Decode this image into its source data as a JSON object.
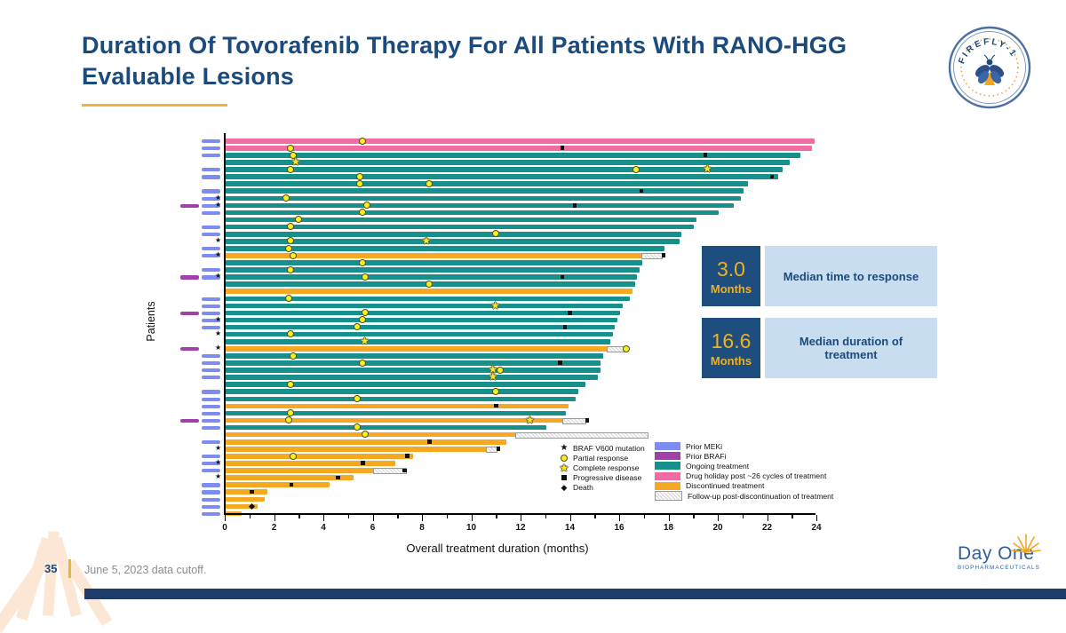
{
  "slide": {
    "title": "Duration Of Tovorafenib Therapy For All Patients With RANO-HGG Evaluable Lesions",
    "page_number": "35",
    "footnote": "June 5, 2023 data cutoff."
  },
  "logos": {
    "firefly_text": "FIREFLY-1",
    "dayone_name": "Day One",
    "dayone_sub": "BIOPHARMACEUTICALS"
  },
  "stats": [
    {
      "value": "3.0",
      "unit": "Months",
      "label": "Median time to response"
    },
    {
      "value": "16.6",
      "unit": "Months",
      "label": "Median duration of treatment"
    }
  ],
  "chart_data": {
    "type": "bar",
    "subtype": "swimmer-plot",
    "xlabel": "Overall treatment duration (months)",
    "ylabel": "Patients",
    "xlim": [
      0,
      24
    ],
    "xticks": [
      0,
      2,
      4,
      6,
      8,
      10,
      12,
      14,
      16,
      18,
      20,
      22,
      24
    ],
    "colors": {
      "teal": "#178F8B",
      "pink": "#F06CA2",
      "orange": "#F7A823",
      "meki": "#7C8CF0",
      "brafi": "#A040A8",
      "navy": "#1B4A7C",
      "gold": "#EFB021",
      "lightblue": "#C9DDF1"
    },
    "legend_markers": [
      {
        "sym": "v600",
        "label": "BRAF V600 mutation"
      },
      {
        "sym": "pr",
        "label": "Partial response"
      },
      {
        "sym": "cr",
        "label": "Complete response"
      },
      {
        "sym": "pd",
        "label": "Progressive disease"
      },
      {
        "sym": "death",
        "label": "Death"
      }
    ],
    "legend_colors": [
      {
        "key": "meki",
        "label": "Prior MEKi"
      },
      {
        "key": "brafi",
        "label": "Prior BRAFi"
      },
      {
        "key": "teal",
        "label": "Ongoing treatment"
      },
      {
        "key": "pink",
        "label": "Drug holiday post ~26 cycles of treatment"
      },
      {
        "key": "orange",
        "label": "Discontinued treatment"
      },
      {
        "key": "hatch",
        "label": "Follow-up post-discontinuation of treatment"
      }
    ],
    "rows": [
      {
        "bar": "pink",
        "len": 23.9,
        "hatch_to": 0,
        "markers": [
          [
            "pr",
            5.6
          ]
        ],
        "meki": 1,
        "brafi": 0,
        "v600": 0
      },
      {
        "bar": "pink",
        "len": 23.8,
        "hatch_to": 0,
        "markers": [
          [
            "pr",
            2.7
          ],
          [
            "pd",
            13.7
          ]
        ],
        "meki": 1,
        "brafi": 0,
        "v600": 0
      },
      {
        "bar": "teal",
        "len": 23.3,
        "hatch_to": 0,
        "markers": [
          [
            "pr",
            2.8
          ],
          [
            "pd",
            19.5
          ]
        ],
        "meki": 1,
        "brafi": 0,
        "v600": 0
      },
      {
        "bar": "teal",
        "len": 22.9,
        "hatch_to": 0,
        "markers": [
          [
            "cr",
            2.9
          ]
        ],
        "meki": 0,
        "brafi": 0,
        "v600": 0
      },
      {
        "bar": "teal",
        "len": 22.6,
        "hatch_to": 0,
        "markers": [
          [
            "pr",
            2.7
          ],
          [
            "pr",
            16.7
          ],
          [
            "cr",
            19.6
          ]
        ],
        "meki": 1,
        "brafi": 0,
        "v600": 0
      },
      {
        "bar": "teal",
        "len": 22.4,
        "hatch_to": 0,
        "markers": [
          [
            "pr",
            5.5
          ],
          [
            "pd",
            22.2
          ]
        ],
        "meki": 1,
        "brafi": 0,
        "v600": 0
      },
      {
        "bar": "teal",
        "len": 21.2,
        "hatch_to": 0,
        "markers": [
          [
            "pr",
            5.5
          ],
          [
            "pr",
            8.3
          ]
        ],
        "meki": 0,
        "brafi": 0,
        "v600": 0
      },
      {
        "bar": "teal",
        "len": 21.0,
        "hatch_to": 0,
        "markers": [
          [
            "pd",
            16.9
          ]
        ],
        "meki": 1,
        "brafi": 0,
        "v600": 0
      },
      {
        "bar": "teal",
        "len": 20.9,
        "hatch_to": 0,
        "markers": [
          [
            "pr",
            2.5
          ]
        ],
        "meki": 1,
        "brafi": 0,
        "v600": 1
      },
      {
        "bar": "teal",
        "len": 20.6,
        "hatch_to": 0,
        "markers": [
          [
            "pr",
            5.8
          ],
          [
            "pd",
            14.2
          ]
        ],
        "meki": 1,
        "brafi": 1,
        "v600": 1
      },
      {
        "bar": "teal",
        "len": 20.0,
        "hatch_to": 0,
        "markers": [
          [
            "pr",
            5.6
          ]
        ],
        "meki": 1,
        "brafi": 0,
        "v600": 0
      },
      {
        "bar": "teal",
        "len": 19.1,
        "hatch_to": 0,
        "markers": [
          [
            "pr",
            3.0
          ]
        ],
        "meki": 0,
        "brafi": 0,
        "v600": 0
      },
      {
        "bar": "teal",
        "len": 19.0,
        "hatch_to": 0,
        "markers": [
          [
            "pr",
            2.7
          ]
        ],
        "meki": 1,
        "brafi": 0,
        "v600": 0
      },
      {
        "bar": "teal",
        "len": 18.5,
        "hatch_to": 0,
        "markers": [
          [
            "pr",
            11.0
          ]
        ],
        "meki": 1,
        "brafi": 0,
        "v600": 0
      },
      {
        "bar": "teal",
        "len": 18.4,
        "hatch_to": 0,
        "markers": [
          [
            "pr",
            2.7
          ],
          [
            "cr",
            8.2
          ]
        ],
        "meki": 0,
        "brafi": 0,
        "v600": 1
      },
      {
        "bar": "teal",
        "len": 17.8,
        "hatch_to": 0,
        "markers": [
          [
            "pr",
            2.6
          ]
        ],
        "meki": 1,
        "brafi": 0,
        "v600": 0
      },
      {
        "bar": "orange",
        "len": 16.9,
        "hatch_to": 17.7,
        "markers": [
          [
            "pr",
            2.8
          ],
          [
            "pd",
            17.8
          ]
        ],
        "meki": 1,
        "brafi": 0,
        "v600": 1
      },
      {
        "bar": "teal",
        "len": 16.9,
        "hatch_to": 0,
        "markers": [
          [
            "pr",
            5.6
          ]
        ],
        "meki": 0,
        "brafi": 0,
        "v600": 0
      },
      {
        "bar": "teal",
        "len": 16.8,
        "hatch_to": 0,
        "markers": [
          [
            "pr",
            2.7
          ]
        ],
        "meki": 1,
        "brafi": 0,
        "v600": 0
      },
      {
        "bar": "teal",
        "len": 16.7,
        "hatch_to": 0,
        "markers": [
          [
            "pr",
            5.7
          ],
          [
            "pd",
            13.7
          ]
        ],
        "meki": 1,
        "brafi": 1,
        "v600": 1
      },
      {
        "bar": "teal",
        "len": 16.6,
        "hatch_to": 0,
        "markers": [
          [
            "pr",
            8.3
          ]
        ],
        "meki": 0,
        "brafi": 0,
        "v600": 0
      },
      {
        "bar": "orange",
        "len": 16.5,
        "hatch_to": 0,
        "markers": [],
        "meki": 0,
        "brafi": 0,
        "v600": 0
      },
      {
        "bar": "teal",
        "len": 16.4,
        "hatch_to": 0,
        "markers": [
          [
            "pr",
            2.6
          ]
        ],
        "meki": 1,
        "brafi": 0,
        "v600": 0
      },
      {
        "bar": "teal",
        "len": 16.1,
        "hatch_to": 0,
        "markers": [
          [
            "cr",
            11.0
          ]
        ],
        "meki": 1,
        "brafi": 0,
        "v600": 0
      },
      {
        "bar": "teal",
        "len": 16.0,
        "hatch_to": 0,
        "markers": [
          [
            "pr",
            5.7
          ],
          [
            "pd",
            14.0
          ]
        ],
        "meki": 1,
        "brafi": 1,
        "v600": 0
      },
      {
        "bar": "teal",
        "len": 15.9,
        "hatch_to": 0,
        "markers": [
          [
            "pr",
            5.6
          ]
        ],
        "meki": 1,
        "brafi": 0,
        "v600": 1
      },
      {
        "bar": "teal",
        "len": 15.8,
        "hatch_to": 0,
        "markers": [
          [
            "pr",
            5.4
          ],
          [
            "pd",
            13.8
          ]
        ],
        "meki": 1,
        "brafi": 0,
        "v600": 0
      },
      {
        "bar": "teal",
        "len": 15.7,
        "hatch_to": 0,
        "markers": [
          [
            "pr",
            2.7
          ]
        ],
        "meki": 0,
        "brafi": 0,
        "v600": 1
      },
      {
        "bar": "teal",
        "len": 15.6,
        "hatch_to": 0,
        "markers": [
          [
            "cr",
            5.7
          ]
        ],
        "meki": 0,
        "brafi": 0,
        "v600": 0
      },
      {
        "bar": "orange",
        "len": 15.5,
        "hatch_to": 16.2,
        "markers": [
          [
            "pr",
            16.3
          ]
        ],
        "meki": 0,
        "brafi": 1,
        "v600": 1
      },
      {
        "bar": "teal",
        "len": 15.3,
        "hatch_to": 0,
        "markers": [
          [
            "pr",
            2.8
          ]
        ],
        "meki": 1,
        "brafi": 0,
        "v600": 0
      },
      {
        "bar": "teal",
        "len": 15.2,
        "hatch_to": 0,
        "markers": [
          [
            "pr",
            5.6
          ],
          [
            "pd",
            13.6
          ]
        ],
        "meki": 1,
        "brafi": 0,
        "v600": 0
      },
      {
        "bar": "teal",
        "len": 15.2,
        "hatch_to": 0,
        "markers": [
          [
            "cr",
            10.9
          ],
          [
            "pr",
            11.2
          ]
        ],
        "meki": 1,
        "brafi": 0,
        "v600": 0
      },
      {
        "bar": "teal",
        "len": 15.1,
        "hatch_to": 0,
        "markers": [
          [
            "cr",
            10.9
          ]
        ],
        "meki": 1,
        "brafi": 0,
        "v600": 0
      },
      {
        "bar": "teal",
        "len": 14.6,
        "hatch_to": 0,
        "markers": [
          [
            "pr",
            2.7
          ]
        ],
        "meki": 0,
        "brafi": 0,
        "v600": 0
      },
      {
        "bar": "teal",
        "len": 14.3,
        "hatch_to": 0,
        "markers": [
          [
            "pr",
            11.0
          ]
        ],
        "meki": 1,
        "brafi": 0,
        "v600": 0
      },
      {
        "bar": "teal",
        "len": 14.2,
        "hatch_to": 0,
        "markers": [
          [
            "pr",
            5.4
          ]
        ],
        "meki": 1,
        "brafi": 0,
        "v600": 0
      },
      {
        "bar": "orange",
        "len": 13.9,
        "hatch_to": 0,
        "markers": [
          [
            "pd",
            11.0
          ]
        ],
        "meki": 1,
        "brafi": 0,
        "v600": 0
      },
      {
        "bar": "teal",
        "len": 13.8,
        "hatch_to": 0,
        "markers": [
          [
            "pr",
            2.7
          ]
        ],
        "meki": 1,
        "brafi": 0,
        "v600": 0
      },
      {
        "bar": "orange",
        "len": 13.7,
        "hatch_to": 14.6,
        "markers": [
          [
            "pr",
            2.6
          ],
          [
            "cr",
            12.4
          ],
          [
            "pd",
            14.7
          ]
        ],
        "meki": 1,
        "brafi": 1,
        "v600": 0
      },
      {
        "bar": "teal",
        "len": 13.0,
        "hatch_to": 0,
        "markers": [
          [
            "pr",
            5.4
          ]
        ],
        "meki": 1,
        "brafi": 0,
        "v600": 0
      },
      {
        "bar": "orange",
        "len": 11.8,
        "hatch_to": 17.1,
        "markers": [
          [
            "pr",
            5.7
          ]
        ],
        "meki": 0,
        "brafi": 0,
        "v600": 0
      },
      {
        "bar": "orange",
        "len": 11.4,
        "hatch_to": 0,
        "markers": [
          [
            "pd",
            8.3
          ]
        ],
        "meki": 1,
        "brafi": 0,
        "v600": 0
      },
      {
        "bar": "orange",
        "len": 10.6,
        "hatch_to": 11.0,
        "markers": [
          [
            "pd",
            11.1
          ]
        ],
        "meki": 0,
        "brafi": 0,
        "v600": 1
      },
      {
        "bar": "orange",
        "len": 7.6,
        "hatch_to": 0,
        "markers": [
          [
            "pr",
            2.8
          ],
          [
            "pd",
            7.4
          ]
        ],
        "meki": 1,
        "brafi": 0,
        "v600": 0
      },
      {
        "bar": "orange",
        "len": 6.9,
        "hatch_to": 0,
        "markers": [
          [
            "pd",
            5.6
          ]
        ],
        "meki": 1,
        "brafi": 0,
        "v600": 1
      },
      {
        "bar": "orange",
        "len": 6.0,
        "hatch_to": 7.3,
        "markers": [
          [
            "pd",
            7.3
          ]
        ],
        "meki": 1,
        "brafi": 0,
        "v600": 0
      },
      {
        "bar": "orange",
        "len": 5.2,
        "hatch_to": 0,
        "markers": [
          [
            "pd",
            4.6
          ]
        ],
        "meki": 0,
        "brafi": 0,
        "v600": 1
      },
      {
        "bar": "orange",
        "len": 4.2,
        "hatch_to": 0,
        "markers": [
          [
            "pd",
            2.7
          ]
        ],
        "meki": 1,
        "brafi": 0,
        "v600": 0
      },
      {
        "bar": "orange",
        "len": 1.7,
        "hatch_to": 0,
        "markers": [
          [
            "pd",
            1.1
          ]
        ],
        "meki": 1,
        "brafi": 0,
        "v600": 0
      },
      {
        "bar": "orange",
        "len": 1.6,
        "hatch_to": 0,
        "markers": [],
        "meki": 1,
        "brafi": 0,
        "v600": 0
      },
      {
        "bar": "orange",
        "len": 1.3,
        "hatch_to": 0,
        "markers": [
          [
            "death",
            1.1
          ]
        ],
        "meki": 1,
        "brafi": 0,
        "v600": 0
      },
      {
        "bar": "orange",
        "len": 0.65,
        "hatch_to": 0,
        "markers": [],
        "meki": 1,
        "brafi": 0,
        "v600": 0
      }
    ]
  }
}
